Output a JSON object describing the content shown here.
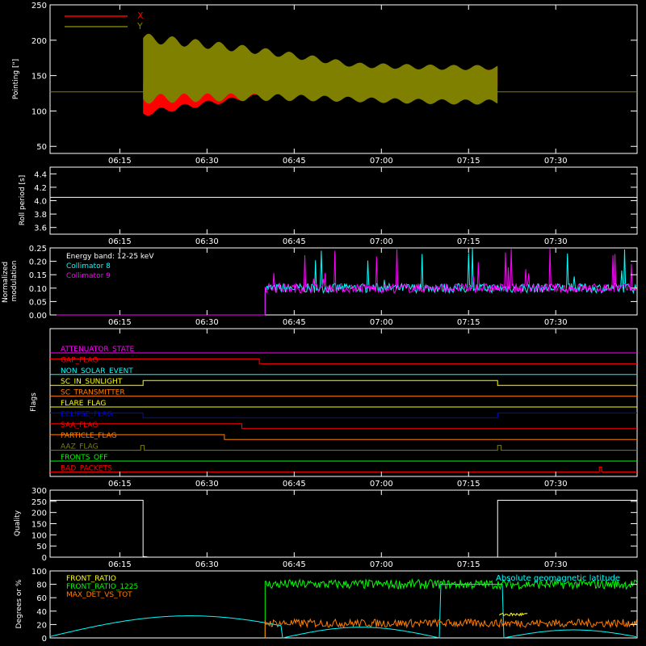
{
  "x_axis": {
    "ticks": [
      "06:15",
      "06:30",
      "06:45",
      "07:00",
      "07:15",
      "07:30"
    ]
  },
  "panels": {
    "pointing": {
      "ylabel": "Pointing [\"]",
      "ylim": [
        40,
        250
      ],
      "yticks": [
        "50",
        "100",
        "150",
        "200",
        "250"
      ],
      "reference_level": 127,
      "legend": [
        {
          "label": "X",
          "color": "#ff0000"
        },
        {
          "label": "Y",
          "color": "#7f7f00"
        }
      ]
    },
    "roll": {
      "ylabel": "Roll period [s]",
      "ylim": [
        3.5,
        4.5
      ],
      "yticks": [
        "3.6",
        "3.8",
        "4.0",
        "4.2",
        "4.4"
      ],
      "value": 4.05
    },
    "modulation": {
      "ylabel": "Normalized modulation",
      "ylim": [
        0,
        0.25
      ],
      "yticks": [
        "0.00",
        "0.05",
        "0.10",
        "0.15",
        "0.20",
        "0.25"
      ],
      "annotation": "Energy band: 12-25 keV",
      "legend": [
        {
          "label": "Collimator 8",
          "color": "#00ffff"
        },
        {
          "label": "Collimator 9",
          "color": "#ff00ff"
        }
      ]
    },
    "flags": {
      "ylabel": "Flags",
      "items": [
        {
          "label": "ATTENUATOR_STATE",
          "color": "#ff00ff"
        },
        {
          "label": "GAP_FLAG",
          "color": "#ff0000"
        },
        {
          "label": "NON_SOLAR_EVENT",
          "color": "#00ffff"
        },
        {
          "label": "SC_IN_SUNLIGHT",
          "color": "#ffff00"
        },
        {
          "label": "SC_TRANSMITTER",
          "color": "#ff7f00"
        },
        {
          "label": "FLARE_FLAG",
          "color": "#ffff00"
        },
        {
          "label": "ECLIPSE_FLAG",
          "color": "#0000ff"
        },
        {
          "label": "SAA_FLAG",
          "color": "#ff0000"
        },
        {
          "label": "PARTICLE_FLAG",
          "color": "#ff7f00"
        },
        {
          "label": "AAZ_FLAG",
          "color": "#7f7f00"
        },
        {
          "label": "FRONTS_OFF",
          "color": "#00ff00"
        },
        {
          "label": "BAD_PACKETS",
          "color": "#ff0000"
        }
      ]
    },
    "quality": {
      "ylabel": "Quality",
      "ylim": [
        0,
        300
      ],
      "yticks": [
        "0",
        "50",
        "100",
        "150",
        "200",
        "250",
        "300"
      ],
      "high_value": 255
    },
    "ratio": {
      "ylabel": "Degrees or %",
      "ylim": [
        0,
        100
      ],
      "yticks": [
        "0",
        "20",
        "40",
        "60",
        "80",
        "100"
      ],
      "legend": [
        {
          "label": "FRONT_RATIO",
          "color": "#ffff00"
        },
        {
          "label": "FRONT_RATIO_1225",
          "color": "#00ff00"
        },
        {
          "label": "MAX_DET_VS_TOT",
          "color": "#ff7f00"
        }
      ],
      "annotation": "Absolute geomagnetic latitude",
      "annotation_color": "#00ffff"
    }
  },
  "colors": {
    "axis": "#ffffff",
    "background": "#000000"
  }
}
